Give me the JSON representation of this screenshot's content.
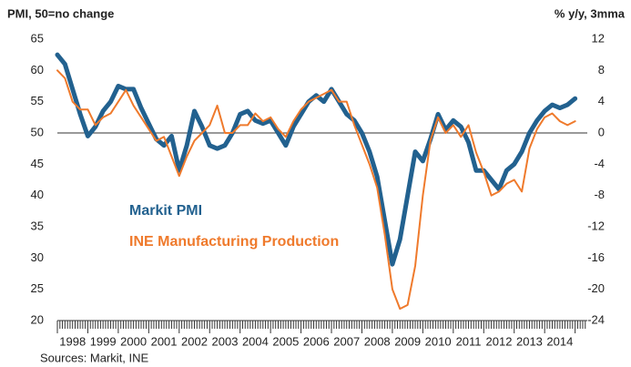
{
  "chart_data": {
    "type": "line",
    "left_title": "PMI, 50=no change",
    "right_title": "% y/y, 3mma",
    "source": "Sources: Markit, INE",
    "x": [
      1998,
      1998.25,
      1998.5,
      1998.75,
      1999,
      1999.25,
      1999.5,
      1999.75,
      2000,
      2000.25,
      2000.5,
      2000.75,
      2001,
      2001.25,
      2001.5,
      2001.75,
      2002,
      2002.25,
      2002.5,
      2002.75,
      2003,
      2003.25,
      2003.5,
      2003.75,
      2004,
      2004.25,
      2004.5,
      2004.75,
      2005,
      2005.25,
      2005.5,
      2005.75,
      2006,
      2006.25,
      2006.5,
      2006.75,
      2007,
      2007.25,
      2007.5,
      2007.75,
      2008,
      2008.25,
      2008.5,
      2008.75,
      2009,
      2009.25,
      2009.5,
      2009.75,
      2010,
      2010.25,
      2010.5,
      2010.75,
      2011,
      2011.25,
      2011.5,
      2011.75,
      2012,
      2012.25,
      2012.5,
      2012.75,
      2013,
      2013.25,
      2013.5,
      2013.75,
      2014,
      2014.25,
      2014.5,
      2014.75,
      2015
    ],
    "series": [
      {
        "name": "Markit PMI",
        "color": "#22618f",
        "width": 5,
        "values": [
          62.5,
          61,
          57,
          53,
          49.5,
          51,
          53.5,
          55,
          57.5,
          57,
          57,
          54,
          51.5,
          49,
          48,
          49.5,
          44,
          48,
          53.5,
          51,
          48,
          47.5,
          48,
          50,
          53,
          53.5,
          52,
          51.5,
          52,
          50,
          48,
          51,
          53,
          55,
          56,
          55,
          57,
          55,
          53,
          52,
          50,
          47,
          43,
          36,
          29,
          33,
          40,
          47,
          45.5,
          49,
          53,
          50.5,
          52,
          51,
          48.5,
          44,
          44,
          42.5,
          41,
          44,
          45,
          47,
          50,
          52,
          53.5,
          54.5,
          54,
          54.5,
          55.5
        ]
      },
      {
        "name": "INE Manufacturing Production",
        "color": "#ef7a2c",
        "width": 2,
        "axis": "y2",
        "values": [
          8,
          7,
          4,
          3,
          3,
          1,
          2,
          2.5,
          4,
          5.5,
          3.5,
          2,
          0.5,
          -1,
          -0.5,
          -3,
          -5.5,
          -3,
          -1,
          0,
          1,
          3.5,
          0,
          0,
          1,
          1,
          2.5,
          1.5,
          2,
          0.5,
          -0.5,
          1.5,
          3,
          4,
          4.5,
          5,
          5.5,
          4,
          4,
          1,
          -1.5,
          -4,
          -7,
          -13,
          -20,
          -22.5,
          -22,
          -17,
          -8,
          -1,
          2,
          0,
          1,
          -0.5,
          1,
          -2.5,
          -5,
          -8,
          -7.5,
          -6.5,
          -6,
          -7.5,
          -2,
          0.5,
          2,
          2.5,
          1.5,
          1,
          1.5
        ]
      }
    ],
    "xlim": [
      1998,
      2015.4
    ],
    "xticks": [
      {
        "value": 1998.5,
        "label": "1998"
      },
      {
        "value": 1999.5,
        "label": "1999"
      },
      {
        "value": 2000.5,
        "label": "2000"
      },
      {
        "value": 2001.5,
        "label": "2001"
      },
      {
        "value": 2002.5,
        "label": "2002"
      },
      {
        "value": 2003.5,
        "label": "2003"
      },
      {
        "value": 2004.5,
        "label": "2004"
      },
      {
        "value": 2005.5,
        "label": "2005"
      },
      {
        "value": 2006.5,
        "label": "2006"
      },
      {
        "value": 2007.5,
        "label": "2007"
      },
      {
        "value": 2008.5,
        "label": "2008"
      },
      {
        "value": 2009.5,
        "label": "2009"
      },
      {
        "value": 2010.5,
        "label": "2010"
      },
      {
        "value": 2011.5,
        "label": "2011"
      },
      {
        "value": 2012.5,
        "label": "2012"
      },
      {
        "value": 2013.5,
        "label": "2013"
      },
      {
        "value": 2014.5,
        "label": "2014"
      }
    ],
    "ylim": [
      20,
      65
    ],
    "yticks": [
      20,
      25,
      30,
      35,
      40,
      45,
      50,
      55,
      60,
      65
    ],
    "y2lim": [
      -24,
      12
    ],
    "y2ticks": [
      -24,
      -20,
      -16,
      -12,
      -8,
      -4,
      0,
      4,
      8,
      12
    ],
    "hline": 50,
    "grid": false
  }
}
